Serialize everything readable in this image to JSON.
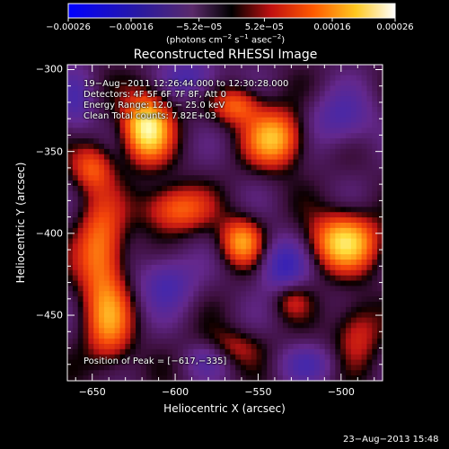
{
  "chart_data": {
    "type": "heatmap",
    "title": "Reconstructed RHESSI Image",
    "xlabel": "Heliocentric X (arcsec)",
    "ylabel": "Heliocentric Y (arcsec)",
    "xlim": [
      -665,
      -475
    ],
    "ylim": [
      -490,
      -297
    ],
    "x_ticks": [
      -650,
      -600,
      -550,
      -500
    ],
    "y_ticks": [
      -300,
      -350,
      -400,
      -450
    ],
    "x_tick_labels": [
      "−650",
      "−600",
      "−550",
      "−500"
    ],
    "y_tick_labels": [
      "−300",
      "−350",
      "−400",
      "−450"
    ],
    "colorbar": {
      "range": [
        -0.00026,
        0.00026
      ],
      "ticks": [
        -0.00026,
        -0.00016,
        -5.2e-05,
        5.2e-05,
        0.00016,
        0.00026
      ],
      "tick_labels": [
        "−0.00026",
        "−0.00016",
        "−5.2e−05",
        "5.2e−05",
        "0.00016",
        "0.00026"
      ],
      "units_main": "(photons cm",
      "units_sup1": "−2",
      "units_mid": " s",
      "units_sup2": "−1",
      "units_end": " asec",
      "units_sup3": "−2",
      "units_close": ")"
    },
    "info_lines": [
      "19−Aug−2011 12:26:44.000 to 12:30:28.000",
      "Detectors: 4F 5F 6F 7F 8F, Att 0",
      "Energy Range: 12.0 − 25.0 keV",
      "Clean     Total counts: 7.82E+03"
    ],
    "peak_label": "Position of Peak = [−617,−335]",
    "sources": [
      {
        "x": -617,
        "y": -335,
        "amp": 1.0,
        "sx": 10,
        "sy": 14
      },
      {
        "x": -540,
        "y": -342,
        "amp": 0.75,
        "sx": 12,
        "sy": 12
      },
      {
        "x": -563,
        "y": -322,
        "amp": 0.5,
        "sx": 10,
        "sy": 8
      },
      {
        "x": -498,
        "y": -405,
        "amp": 0.85,
        "sx": 14,
        "sy": 12
      },
      {
        "x": -560,
        "y": -405,
        "amp": 0.65,
        "sx": 9,
        "sy": 10
      },
      {
        "x": -600,
        "y": -385,
        "amp": 0.55,
        "sx": 14,
        "sy": 10
      },
      {
        "x": -645,
        "y": -410,
        "amp": 0.6,
        "sx": 10,
        "sy": 22
      },
      {
        "x": -640,
        "y": -455,
        "amp": 0.55,
        "sx": 10,
        "sy": 18
      },
      {
        "x": -650,
        "y": -360,
        "amp": 0.45,
        "sx": 9,
        "sy": 10
      },
      {
        "x": -570,
        "y": -470,
        "amp": 0.35,
        "sx": 14,
        "sy": 8
      },
      {
        "x": -490,
        "y": -460,
        "amp": 0.35,
        "sx": 10,
        "sy": 14
      },
      {
        "x": -530,
        "y": -440,
        "amp": 0.3,
        "sx": 8,
        "sy": 8
      },
      {
        "x": -605,
        "y": -430,
        "amp": -0.4,
        "sx": 12,
        "sy": 12
      },
      {
        "x": -535,
        "y": -420,
        "amp": -0.5,
        "sx": 10,
        "sy": 12
      },
      {
        "x": -590,
        "y": -305,
        "amp": -0.4,
        "sx": 12,
        "sy": 8
      },
      {
        "x": -500,
        "y": -330,
        "amp": -0.35,
        "sx": 14,
        "sy": 12
      },
      {
        "x": -580,
        "y": -475,
        "amp": -0.35,
        "sx": 10,
        "sy": 8
      },
      {
        "x": -660,
        "y": -320,
        "amp": -0.3,
        "sx": 8,
        "sy": 14
      },
      {
        "x": -520,
        "y": -480,
        "amp": -0.3,
        "sx": 12,
        "sy": 8
      }
    ]
  },
  "footer": {
    "timestamp": "23−Aug−2013 15:48"
  },
  "colors": {
    "background": "#000000",
    "foreground": "#ffffff"
  }
}
